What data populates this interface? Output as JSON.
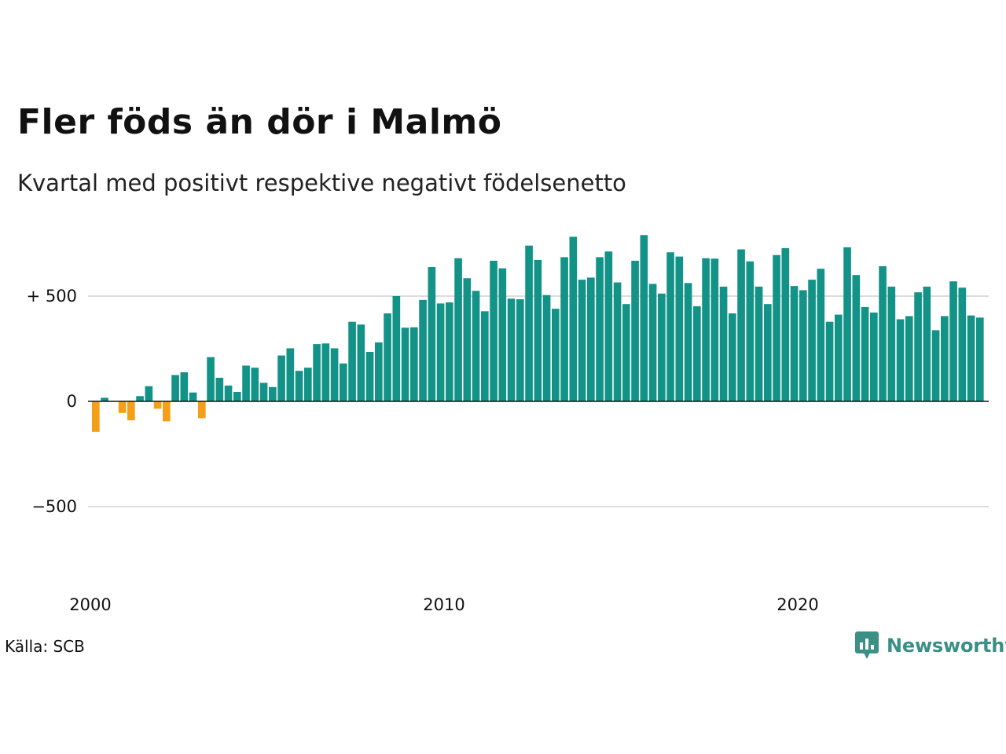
{
  "title": "Fler föds än dör i Malmö",
  "subtitle": "Kvartal med positivt respektive negativt födelsenetto",
  "source": "Källa: SCB",
  "logo": {
    "text": "Newsworthy",
    "color": "#3a8f86"
  },
  "colors": {
    "positive": "#139387",
    "negative": "#f59f18",
    "grid": "#dddddd",
    "zero_line": "#111111"
  },
  "chart_data": {
    "type": "bar",
    "x_start": 2000,
    "periods_per_year": 4,
    "x_ticks": [
      2000,
      2010,
      2020
    ],
    "x_tick_labels": [
      "2000",
      "2010",
      "2020"
    ],
    "y_ticks": [
      -500,
      0,
      500
    ],
    "y_tick_labels": [
      "−500",
      "0",
      "+ 500"
    ],
    "ylim": [
      -900,
      900
    ],
    "grid": true,
    "values": [
      -145,
      17,
      2,
      -55,
      -90,
      25,
      72,
      -35,
      -95,
      125,
      138,
      42,
      -80,
      210,
      112,
      75,
      45,
      170,
      160,
      88,
      68,
      218,
      252,
      145,
      160,
      272,
      275,
      252,
      180,
      378,
      365,
      235,
      280,
      418,
      500,
      350,
      352,
      482,
      638,
      465,
      470,
      680,
      585,
      525,
      428,
      668,
      632,
      488,
      485,
      740,
      672,
      505,
      440,
      685,
      782,
      578,
      588,
      685,
      712,
      565,
      462,
      668,
      790,
      558,
      512,
      708,
      688,
      562,
      452,
      680,
      678,
      545,
      418,
      722,
      665,
      545,
      462,
      695,
      728,
      548,
      528,
      578,
      630,
      378,
      412,
      732,
      600,
      448,
      422,
      642,
      545,
      390,
      405,
      518,
      545,
      338,
      405,
      570,
      540,
      408,
      398
    ]
  }
}
